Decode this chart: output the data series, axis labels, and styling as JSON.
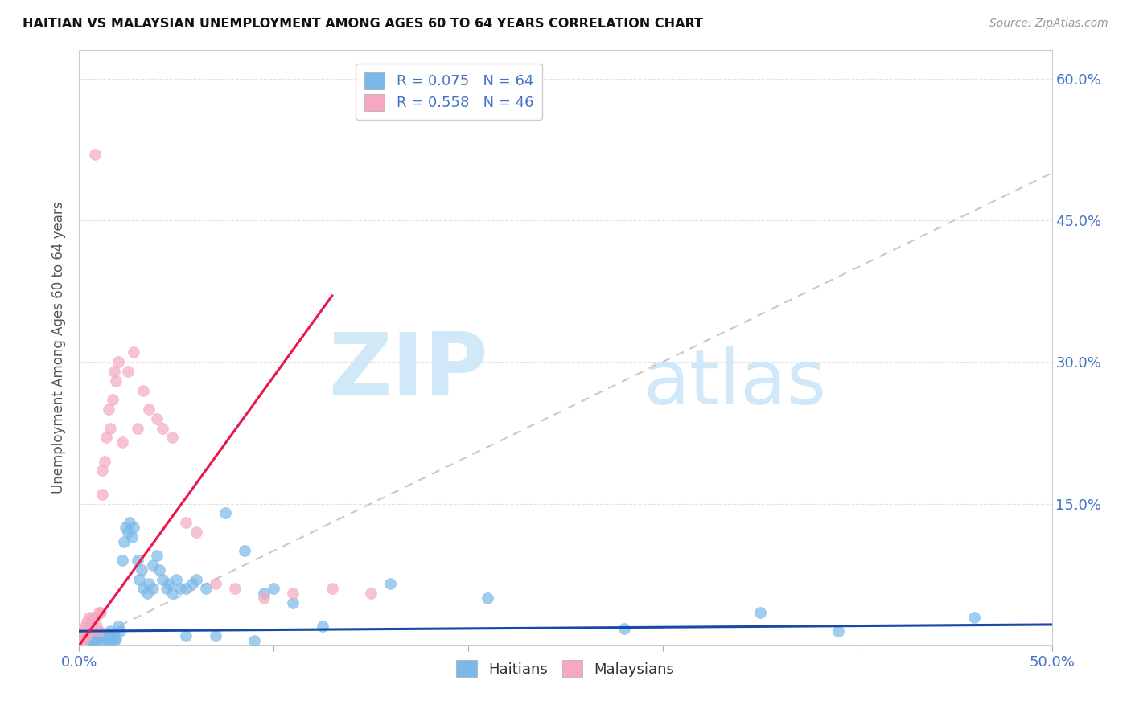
{
  "title": "HAITIAN VS MALAYSIAN UNEMPLOYMENT AMONG AGES 60 TO 64 YEARS CORRELATION CHART",
  "source": "Source: ZipAtlas.com",
  "ylabel": "Unemployment Among Ages 60 to 64 years",
  "xlim": [
    0.0,
    0.5
  ],
  "ylim": [
    0.0,
    0.63
  ],
  "yticks": [
    0.0,
    0.15,
    0.3,
    0.45,
    0.6
  ],
  "ytick_labels_right": [
    "",
    "15.0%",
    "30.0%",
    "45.0%",
    "60.0%"
  ],
  "watermark_zip": "ZIP",
  "watermark_atlas": "atlas",
  "watermark_color": "#d0e8f8",
  "haitians_color": "#7ab8e8",
  "haitians_edge": "#5a98c8",
  "malaysians_color": "#f5a8c0",
  "malaysians_edge": "#e07898",
  "trend_haitian_color": "#1848a8",
  "trend_malaysian_color": "#e81848",
  "ref_line_color": "#c8c8c8",
  "grid_color": "#e0e0e0",
  "R_haitian": 0.075,
  "N_haitian": 64,
  "R_malaysian": 0.558,
  "N_malaysian": 46,
  "haitian_trend_x0": 0.0,
  "haitian_trend_y0": 0.015,
  "haitian_trend_x1": 0.5,
  "haitian_trend_y1": 0.022,
  "malaysian_trend_x0": 0.0,
  "malaysian_trend_y0": 0.0,
  "malaysian_trend_x1": 0.13,
  "malaysian_trend_y1": 0.37,
  "haitians_x": [
    0.002,
    0.003,
    0.004,
    0.005,
    0.006,
    0.007,
    0.007,
    0.008,
    0.009,
    0.01,
    0.011,
    0.012,
    0.013,
    0.014,
    0.015,
    0.016,
    0.017,
    0.018,
    0.018,
    0.019,
    0.02,
    0.021,
    0.022,
    0.023,
    0.024,
    0.025,
    0.026,
    0.027,
    0.028,
    0.03,
    0.031,
    0.032,
    0.033,
    0.035,
    0.036,
    0.038,
    0.038,
    0.04,
    0.041,
    0.043,
    0.045,
    0.046,
    0.048,
    0.05,
    0.052,
    0.055,
    0.055,
    0.058,
    0.06,
    0.065,
    0.07,
    0.075,
    0.085,
    0.09,
    0.095,
    0.1,
    0.11,
    0.125,
    0.16,
    0.21,
    0.28,
    0.35,
    0.39,
    0.46
  ],
  "haitians_y": [
    0.01,
    0.008,
    0.012,
    0.006,
    0.008,
    0.005,
    0.012,
    0.007,
    0.005,
    0.01,
    0.008,
    0.006,
    0.012,
    0.007,
    0.005,
    0.015,
    0.008,
    0.01,
    0.006,
    0.007,
    0.02,
    0.015,
    0.09,
    0.11,
    0.125,
    0.12,
    0.13,
    0.115,
    0.125,
    0.09,
    0.07,
    0.08,
    0.06,
    0.055,
    0.065,
    0.06,
    0.085,
    0.095,
    0.08,
    0.07,
    0.06,
    0.065,
    0.055,
    0.07,
    0.06,
    0.06,
    0.01,
    0.065,
    0.07,
    0.06,
    0.01,
    0.14,
    0.1,
    0.005,
    0.055,
    0.06,
    0.045,
    0.02,
    0.065,
    0.05,
    0.018,
    0.035,
    0.015,
    0.03
  ],
  "malaysians_x": [
    0.001,
    0.002,
    0.002,
    0.003,
    0.003,
    0.004,
    0.004,
    0.005,
    0.005,
    0.006,
    0.006,
    0.007,
    0.007,
    0.008,
    0.008,
    0.009,
    0.01,
    0.01,
    0.011,
    0.012,
    0.012,
    0.013,
    0.014,
    0.015,
    0.016,
    0.017,
    0.018,
    0.019,
    0.02,
    0.022,
    0.025,
    0.028,
    0.03,
    0.033,
    0.036,
    0.04,
    0.043,
    0.048,
    0.055,
    0.06,
    0.07,
    0.08,
    0.095,
    0.11,
    0.13,
    0.15
  ],
  "malaysians_y": [
    0.005,
    0.01,
    0.015,
    0.008,
    0.02,
    0.012,
    0.025,
    0.018,
    0.03,
    0.022,
    0.015,
    0.025,
    0.028,
    0.52,
    0.03,
    0.02,
    0.015,
    0.035,
    0.035,
    0.16,
    0.185,
    0.195,
    0.22,
    0.25,
    0.23,
    0.26,
    0.29,
    0.28,
    0.3,
    0.215,
    0.29,
    0.31,
    0.23,
    0.27,
    0.25,
    0.24,
    0.23,
    0.22,
    0.13,
    0.12,
    0.065,
    0.06,
    0.05,
    0.055,
    0.06,
    0.055
  ]
}
